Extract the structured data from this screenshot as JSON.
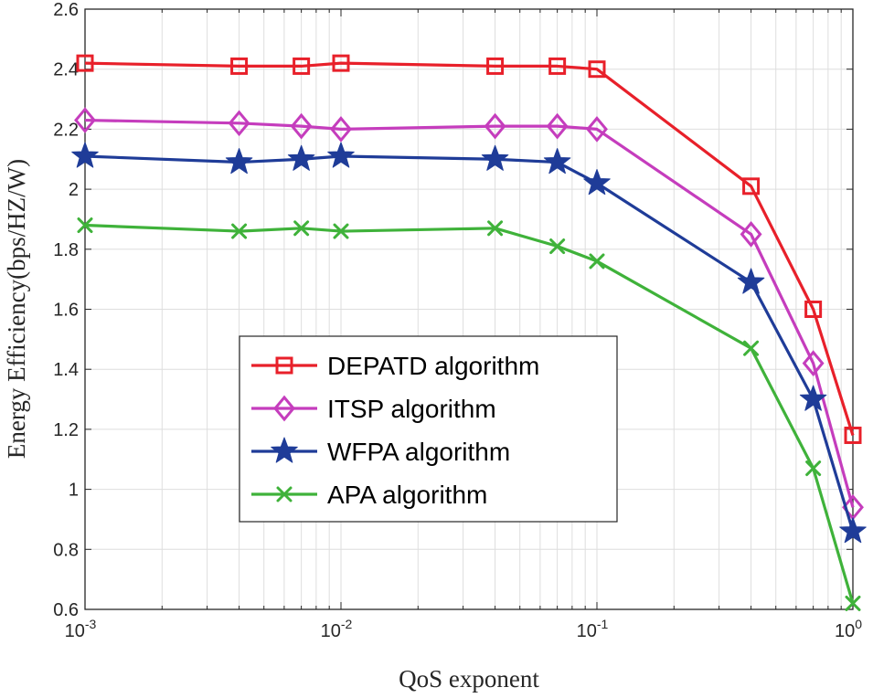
{
  "chart_data": {
    "type": "line",
    "xscale": "log",
    "x": [
      0.001,
      0.004,
      0.007,
      0.01,
      0.04,
      0.07,
      0.1,
      0.4,
      0.7,
      1
    ],
    "xlim": [
      0.001,
      1
    ],
    "ylim": [
      0.6,
      2.6
    ],
    "xticks": [
      {
        "base": "10",
        "exp": "-3"
      },
      {
        "base": "10",
        "exp": "-2"
      },
      {
        "base": "10",
        "exp": "-1"
      },
      {
        "base": "10",
        "exp": "0"
      }
    ],
    "yticks": [
      "0.6",
      "0.8",
      "1",
      "1.2",
      "1.4",
      "1.6",
      "1.8",
      "2",
      "2.2",
      "2.4",
      "2.6"
    ],
    "xlabel": "QoS exponent",
    "ylabel": "Energy Efficiency(bps/HZ/W)",
    "grid": true,
    "legend_position": "lower-left",
    "series": [
      {
        "name": "DEPATD algorithm",
        "color": "#e8202a",
        "marker": "square",
        "values": [
          2.42,
          2.41,
          2.41,
          2.42,
          2.41,
          2.41,
          2.4,
          2.01,
          1.6,
          1.18
        ]
      },
      {
        "name": "ITSP algorithm",
        "color": "#c53dbd",
        "marker": "diamond",
        "values": [
          2.23,
          2.22,
          2.21,
          2.2,
          2.21,
          2.21,
          2.2,
          1.85,
          1.42,
          0.94
        ]
      },
      {
        "name": "WFPA algorithm",
        "color": "#1f3c98",
        "marker": "star",
        "values": [
          2.11,
          2.09,
          2.1,
          2.11,
          2.1,
          2.09,
          2.02,
          1.69,
          1.3,
          0.86
        ]
      },
      {
        "name": "APA algorithm",
        "color": "#3fb23a",
        "marker": "x",
        "values": [
          1.88,
          1.86,
          1.87,
          1.86,
          1.87,
          1.81,
          1.76,
          1.47,
          1.07,
          0.62
        ]
      }
    ]
  }
}
